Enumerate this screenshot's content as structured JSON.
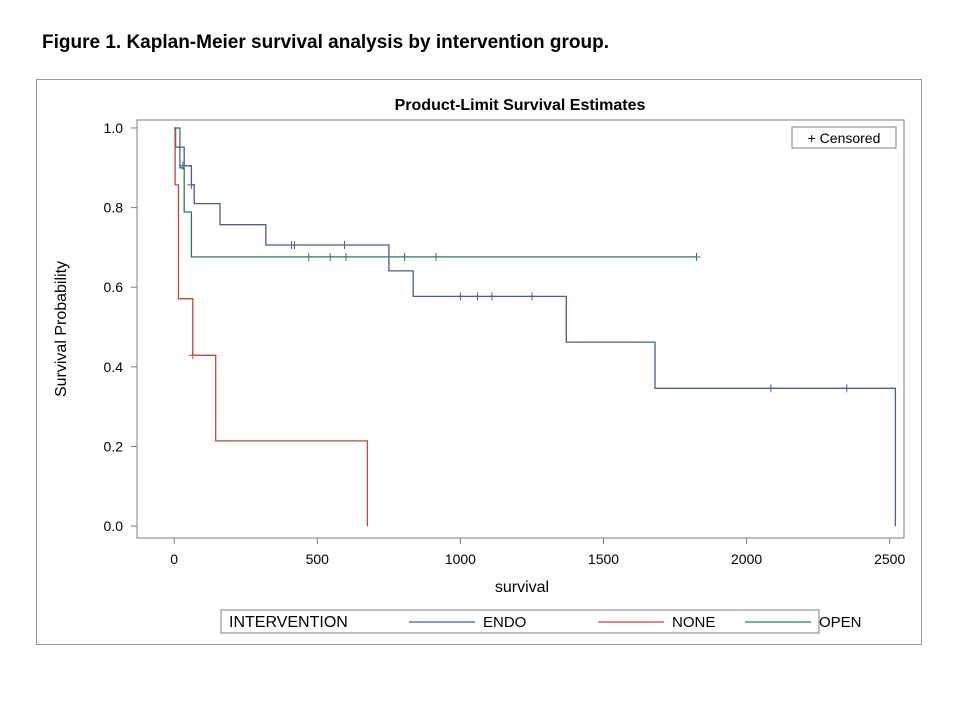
{
  "figure_caption": "Figure 1. Kaplan-Meier survival analysis by intervention group.",
  "chart_data": {
    "type": "line",
    "subtype": "kaplan-meier step",
    "title": "Product-Limit Survival Estimates",
    "xlabel": "survival",
    "ylabel": "Survival Probability",
    "xlim": [
      -130,
      2550
    ],
    "ylim": [
      -0.03,
      1.02
    ],
    "xticks": [
      0,
      500,
      1000,
      1500,
      2000,
      2500
    ],
    "yticks": [
      0.0,
      0.2,
      0.4,
      0.6,
      0.8,
      1.0
    ],
    "ytick_labels": [
      "0.0",
      "0.2",
      "0.4",
      "0.6",
      "0.8",
      "1.0"
    ],
    "grid": false,
    "censor_legend": "+ Censored",
    "censor_legend_position": "top-right",
    "legend_title": "INTERVENTION",
    "legend_position": "bottom",
    "series": [
      {
        "name": "ENDO",
        "color": "#4a5a9a",
        "steps": [
          [
            0,
            1.0
          ],
          [
            5,
            0.952
          ],
          [
            35,
            0.905
          ],
          [
            60,
            0.857
          ],
          [
            70,
            0.81
          ],
          [
            160,
            0.757
          ],
          [
            320,
            0.706
          ],
          [
            750,
            0.641
          ],
          [
            835,
            0.577
          ],
          [
            1370,
            0.462
          ],
          [
            1680,
            0.346
          ],
          [
            2520,
            0.0
          ]
        ],
        "end_x": 2520,
        "censored": [
          [
            30,
            0.905
          ],
          [
            60,
            0.857
          ],
          [
            410,
            0.706
          ],
          [
            420,
            0.706
          ],
          [
            595,
            0.706
          ],
          [
            1000,
            0.577
          ],
          [
            1060,
            0.577
          ],
          [
            1110,
            0.577
          ],
          [
            1250,
            0.577
          ],
          [
            2085,
            0.346
          ],
          [
            2350,
            0.346
          ]
        ]
      },
      {
        "name": "NONE",
        "color": "#b84a3a",
        "steps": [
          [
            0,
            1.0
          ],
          [
            3,
            0.857
          ],
          [
            15,
            0.571
          ],
          [
            65,
            0.429
          ],
          [
            145,
            0.214
          ],
          [
            675,
            0.0
          ]
        ],
        "end_x": 675,
        "censored": [
          [
            65,
            0.429
          ]
        ]
      },
      {
        "name": "OPEN",
        "color": "#2a7a6a",
        "steps": [
          [
            0,
            1.0
          ],
          [
            20,
            0.9
          ],
          [
            35,
            0.789
          ],
          [
            60,
            0.676
          ]
        ],
        "end_x": 1825,
        "censored": [
          [
            470,
            0.676
          ],
          [
            545,
            0.676
          ],
          [
            600,
            0.676
          ],
          [
            805,
            0.676
          ],
          [
            915,
            0.676
          ],
          [
            1825,
            0.676
          ]
        ]
      }
    ]
  }
}
